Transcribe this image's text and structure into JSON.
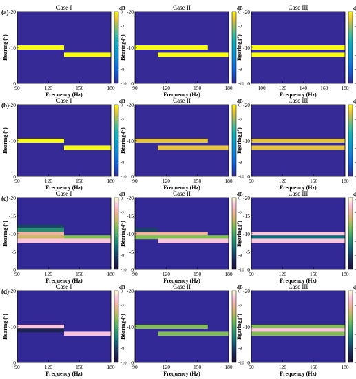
{
  "figure": {
    "xlabel": "Frequency (Hz)",
    "ylabel": "Bearing (°)",
    "colorbar_label": "dB",
    "colorbar_ticks": [
      "0",
      "-2",
      "-4",
      "-6",
      "-8",
      "-10"
    ],
    "colorbar_range": [
      -10,
      0
    ],
    "y_ticks": [
      "-20",
      "-10",
      "0"
    ],
    "y_ticks_row3": [
      "-20",
      "-15",
      "-10",
      "-5",
      "0"
    ],
    "rows": [
      {
        "label": "(a)",
        "colormap": "parula"
      },
      {
        "label": "(b)",
        "colormap": "parula"
      },
      {
        "label": "(c)",
        "colormap": "cubehelix"
      },
      {
        "label": "(d)",
        "colormap": "cubehelix"
      }
    ],
    "columns": [
      {
        "title": "Case I"
      },
      {
        "title": "Case II"
      },
      {
        "title": "Case III"
      }
    ],
    "x_ticks": {
      "default": [
        "90",
        "120",
        "150",
        "180"
      ],
      "case3_row_a": [
        "100",
        "120",
        "140",
        "160",
        "180"
      ]
    }
  },
  "chart_data": [
    {
      "type": "heatmap",
      "panel": "(a) Case I",
      "title": "Case I",
      "xlabel": "Frequency (Hz)",
      "ylabel": "Bearing (°)",
      "xlim": [
        90,
        180
      ],
      "ylim": [
        -20,
        0
      ],
      "background_db": -10,
      "bands": [
        {
          "x": [
            90,
            135
          ],
          "bearing": -10,
          "db": 0
        },
        {
          "x": [
            135,
            180
          ],
          "bearing": -8,
          "db": 0
        }
      ]
    },
    {
      "type": "heatmap",
      "panel": "(a) Case II",
      "title": "Case II",
      "xlabel": "Frequency (Hz)",
      "ylabel": "Bearing (°)",
      "xlim": [
        90,
        180
      ],
      "ylim": [
        -20,
        0
      ],
      "background_db": -10,
      "bands": [
        {
          "x": [
            90,
            160
          ],
          "bearing": -10,
          "db": 0
        },
        {
          "x": [
            112,
            180
          ],
          "bearing": -8,
          "db": 0
        }
      ]
    },
    {
      "type": "heatmap",
      "panel": "(a) Case III",
      "title": "Case III",
      "xlabel": "Frequency (Hz)",
      "ylabel": "Bearing (°)",
      "xlim": [
        90,
        180
      ],
      "ylim": [
        -20,
        0
      ],
      "background_db": -10,
      "bands": [
        {
          "x": [
            90,
            180
          ],
          "bearing": -10,
          "db": 0
        },
        {
          "x": [
            90,
            180
          ],
          "bearing": -8,
          "db": 0
        }
      ]
    },
    {
      "type": "heatmap",
      "panel": "(b) Case I",
      "title": "Case I",
      "xlabel": "Frequency (Hz)",
      "ylabel": "Bearing (°)",
      "xlim": [
        90,
        180
      ],
      "ylim": [
        -20,
        0
      ],
      "background_db": -10,
      "bands": [
        {
          "x": [
            90,
            135
          ],
          "bearing": -10,
          "db": 0
        },
        {
          "x": [
            135,
            180
          ],
          "bearing": -8,
          "db": 0
        }
      ]
    },
    {
      "type": "heatmap",
      "panel": "(b) Case II",
      "title": "Case II",
      "xlabel": "Frequency (Hz)",
      "ylabel": "Bearing (°)",
      "xlim": [
        90,
        180
      ],
      "ylim": [
        -20,
        0
      ],
      "background_db": -10,
      "bands": [
        {
          "x": [
            90,
            160
          ],
          "bearing": -10,
          "db": -1
        },
        {
          "x": [
            112,
            180
          ],
          "bearing": -8,
          "db": -1
        }
      ]
    },
    {
      "type": "heatmap",
      "panel": "(b) Case III",
      "title": "Case III",
      "xlabel": "Frequency (Hz)",
      "ylabel": "Bearing (°)",
      "xlim": [
        90,
        180
      ],
      "ylim": [
        -20,
        0
      ],
      "background_db": -10,
      "bands": [
        {
          "x": [
            90,
            180
          ],
          "bearing": -10,
          "db": -1
        },
        {
          "x": [
            90,
            180
          ],
          "bearing": -8,
          "db": -1
        }
      ]
    },
    {
      "type": "heatmap",
      "panel": "(c) Case I",
      "title": "Case I",
      "xlabel": "Frequency (Hz)",
      "ylabel": "Bearing (°)",
      "xlim": [
        90,
        180
      ],
      "ylim": [
        -20,
        0
      ],
      "background_db": -10,
      "bands": [
        {
          "x": [
            90,
            135
          ],
          "bearing": -12,
          "db": -8
        },
        {
          "x": [
            90,
            135
          ],
          "bearing": -11,
          "db": -6
        },
        {
          "x": [
            90,
            135
          ],
          "bearing": -10,
          "db": -2
        },
        {
          "x": [
            90,
            135
          ],
          "bearing": -9,
          "db": -3
        },
        {
          "x": [
            135,
            180
          ],
          "bearing": -9,
          "db": -4
        },
        {
          "x": [
            90,
            180
          ],
          "bearing": -8,
          "db": -1
        }
      ]
    },
    {
      "type": "heatmap",
      "panel": "(c) Case II",
      "title": "Case II",
      "xlabel": "Frequency (Hz)",
      "ylabel": "Bearing (°)",
      "xlim": [
        90,
        180
      ],
      "ylim": [
        -20,
        0
      ],
      "background_db": -10,
      "bands": [
        {
          "x": [
            90,
            112
          ],
          "bearing": -11,
          "db": -8
        },
        {
          "x": [
            90,
            160
          ],
          "bearing": -10,
          "db": -2
        },
        {
          "x": [
            90,
            180
          ],
          "bearing": -9,
          "db": -4
        },
        {
          "x": [
            112,
            180
          ],
          "bearing": -8,
          "db": -1
        }
      ]
    },
    {
      "type": "heatmap",
      "panel": "(c) Case III",
      "title": "Case III",
      "xlabel": "Frequency (Hz)",
      "ylabel": "Bearing (°)",
      "xlim": [
        90,
        180
      ],
      "ylim": [
        -20,
        0
      ],
      "background_db": -10,
      "bands": [
        {
          "x": [
            90,
            180
          ],
          "bearing": -10,
          "db": -1
        },
        {
          "x": [
            90,
            180
          ],
          "bearing": -9,
          "db": -7
        },
        {
          "x": [
            90,
            180
          ],
          "bearing": -8,
          "db": -1
        }
      ]
    },
    {
      "type": "heatmap",
      "panel": "(d) Case I",
      "title": "Case I",
      "xlabel": "Frequency (Hz)",
      "ylabel": "Bearing (°)",
      "xlim": [
        90,
        180
      ],
      "ylim": [
        -20,
        0
      ],
      "background_db": -10,
      "bands": [
        {
          "x": [
            90,
            135
          ],
          "bearing": -10,
          "db": -1
        },
        {
          "x": [
            90,
            135
          ],
          "bearing": -9,
          "db": -9
        },
        {
          "x": [
            135,
            180
          ],
          "bearing": -8,
          "db": -1
        }
      ]
    },
    {
      "type": "heatmap",
      "panel": "(d) Case II",
      "title": "Case II",
      "xlabel": "Frequency (Hz)",
      "ylabel": "Bearing (°)",
      "xlim": [
        90,
        180
      ],
      "ylim": [
        -20,
        0
      ],
      "background_db": -10,
      "bands": [
        {
          "x": [
            90,
            160
          ],
          "bearing": -10,
          "db": -4
        },
        {
          "x": [
            112,
            180
          ],
          "bearing": -8,
          "db": -4
        }
      ]
    },
    {
      "type": "heatmap",
      "panel": "(d) Case III",
      "title": "Case III",
      "xlabel": "Frequency (Hz)",
      "ylabel": "Bearing (°)",
      "xlim": [
        90,
        180
      ],
      "ylim": [
        -20,
        0
      ],
      "background_db": -10,
      "bands": [
        {
          "x": [
            90,
            180
          ],
          "bearing": -10,
          "db": -4
        },
        {
          "x": [
            90,
            180
          ],
          "bearing": -9,
          "db": -1
        },
        {
          "x": [
            90,
            180
          ],
          "bearing": -8,
          "db": -4
        }
      ]
    }
  ]
}
